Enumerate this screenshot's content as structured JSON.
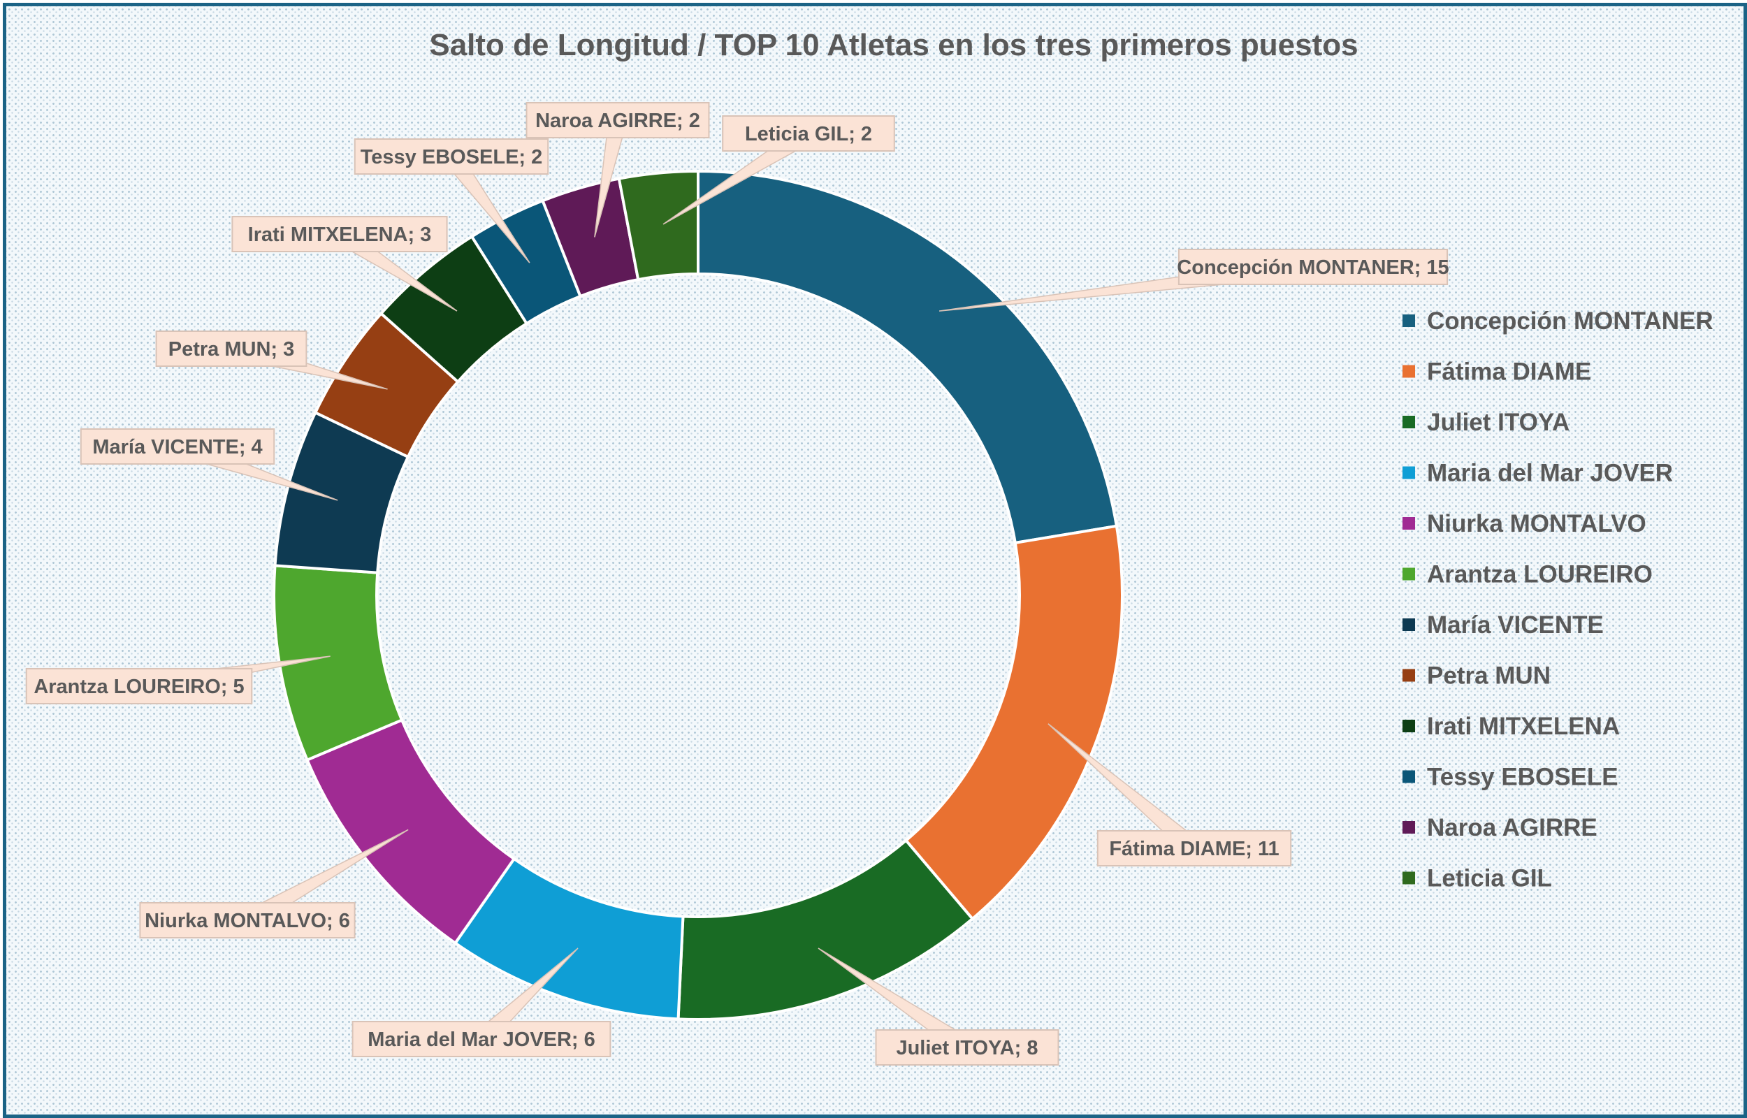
{
  "chart_data": {
    "type": "pie",
    "variant": "doughnut",
    "title": "Salto de Longitud / TOP 10 Atletas en los tres primeros puestos",
    "categories": [
      "Concepción MONTANER",
      "Fátima DIAME",
      "Juliet ITOYA",
      "Maria del Mar JOVER",
      "Niurka MONTALVO",
      "Arantza LOUREIRO",
      "María VICENTE",
      "Petra MUN",
      "Irati MITXELENA",
      "Tessy EBOSELE",
      "Naroa AGIRRE",
      "Leticia GIL"
    ],
    "values": [
      15,
      11,
      8,
      6,
      6,
      5,
      4,
      3,
      3,
      2,
      2,
      2
    ],
    "colors": [
      "#17607f",
      "#e97131",
      "#196b24",
      "#0f9ed5",
      "#a02b93",
      "#4ea72e",
      "#0e3a52",
      "#963f13",
      "#0d3e14",
      "#0a5678",
      "#5f1a57",
      "#2f6a1e"
    ],
    "data_labels": [
      "Concepción MONTANER; 15",
      "Fátima DIAME; 11",
      "Juliet ITOYA; 8",
      "Maria del Mar JOVER; 6",
      "Niurka MONTALVO; 6",
      "Arantza LOUREIRO; 5",
      "María VICENTE; 4",
      "Petra MUN; 3",
      "Irati MITXELENA; 3",
      "Tessy EBOSELE; 2",
      "Naroa AGIRRE; 2",
      "Leticia GIL; 2"
    ],
    "legend_position": "right",
    "label_background": "#fbe3d6"
  }
}
